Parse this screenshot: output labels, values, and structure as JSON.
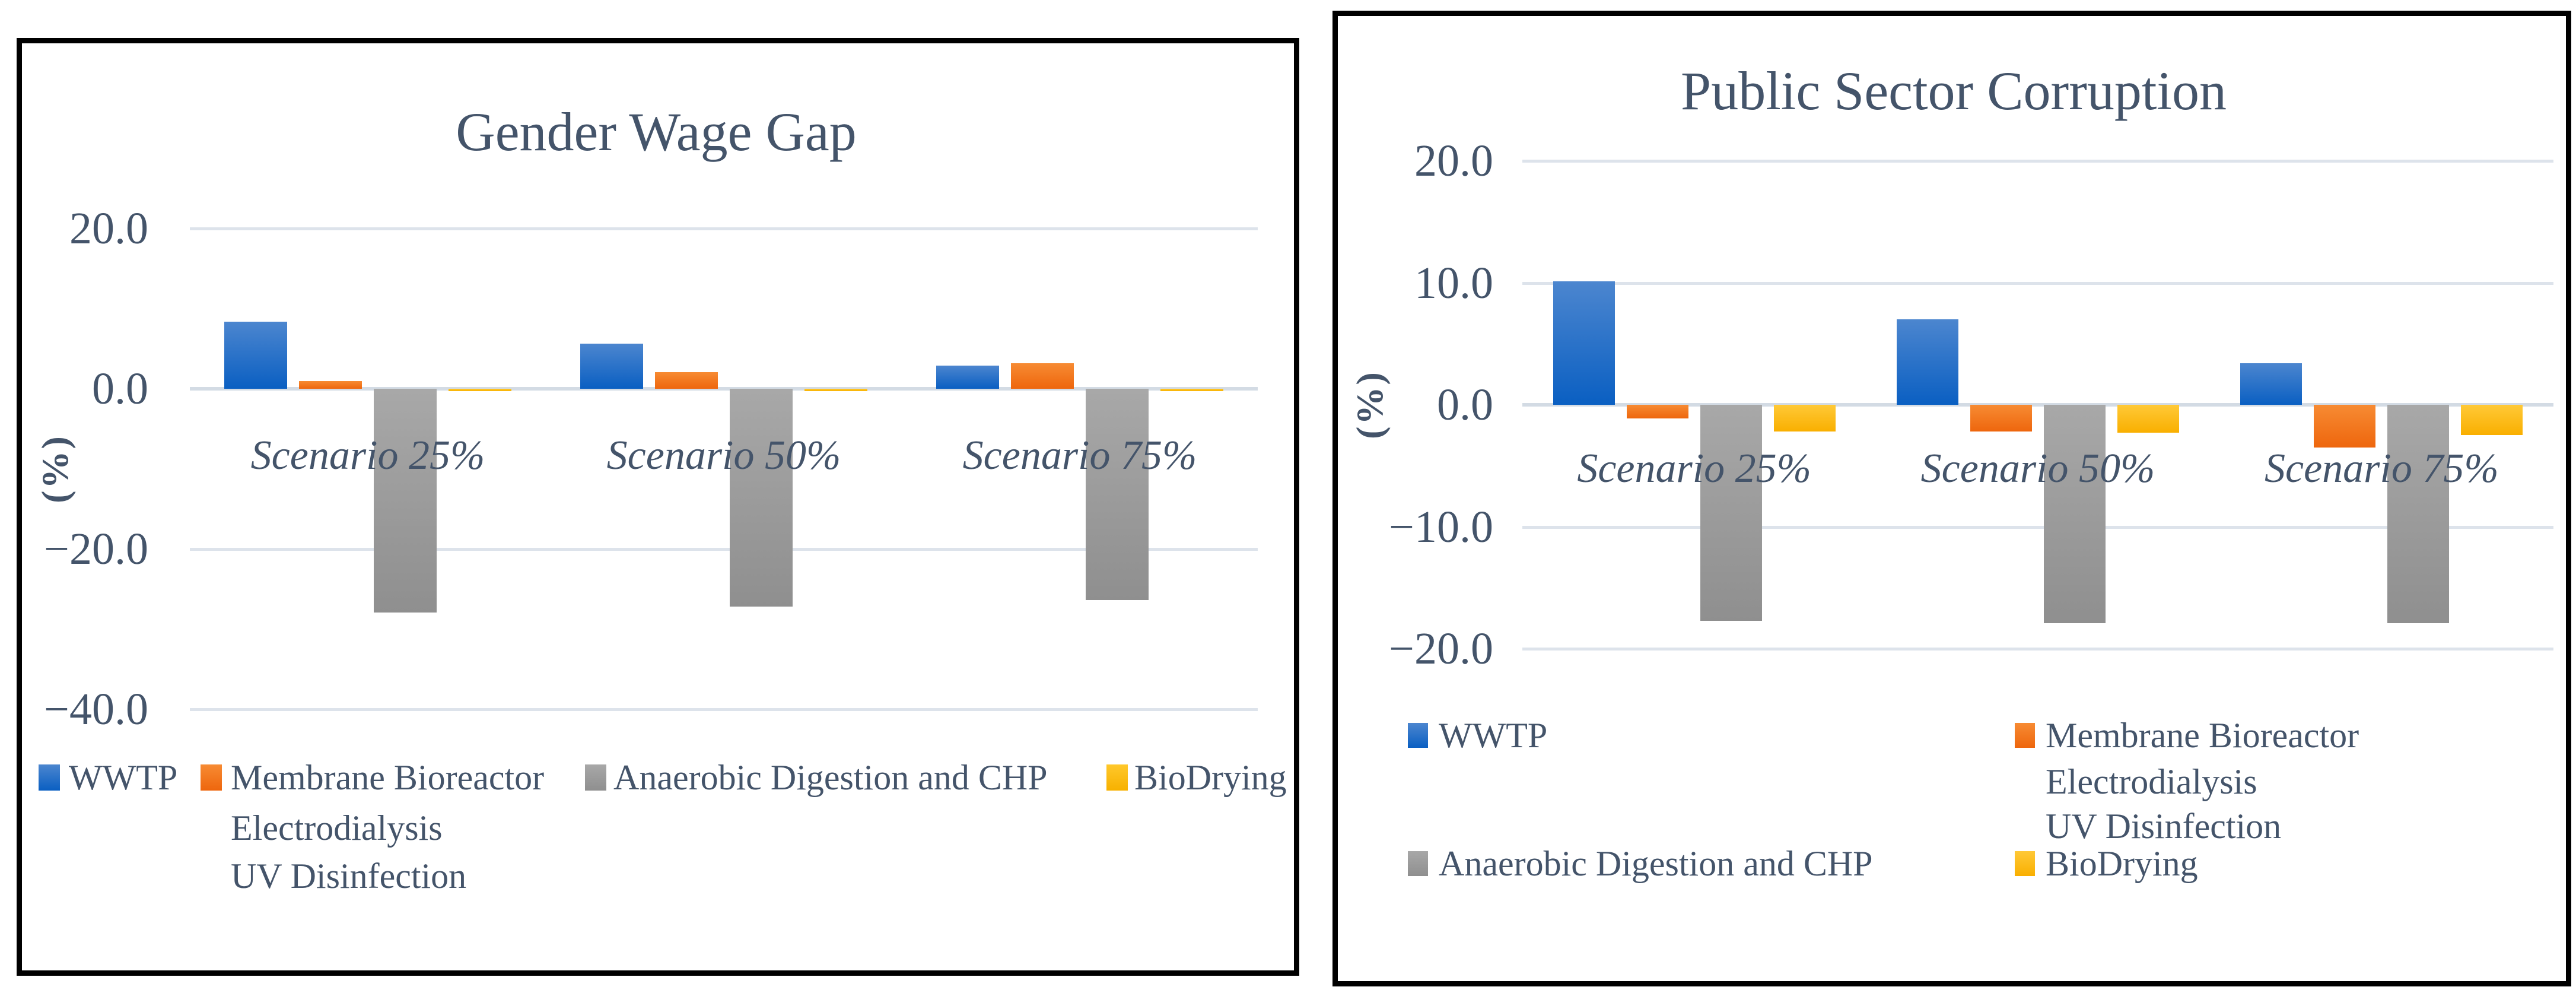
{
  "colors": {
    "text": "#44546A",
    "gridline": "#DDE3EB",
    "axis_line": "#D3DBE4",
    "panel_border": "#000000",
    "background": "#FFFFFF"
  },
  "chart_data": [
    {
      "type": "bar",
      "title": "Gender Wage Gap",
      "ylabel": "(%)",
      "xlabel": "",
      "categories": [
        "Scenario 25%",
        "Scenario 50%",
        "Scenario 75%"
      ],
      "ylim": [
        -40,
        20
      ],
      "grid": true,
      "legend_position": "bottom",
      "yticks": [
        {
          "v": 20,
          "label": "20.0"
        },
        {
          "v": 0,
          "label": "0.0"
        },
        {
          "v": -20,
          "label": "−20.0"
        },
        {
          "v": -40,
          "label": "−40.0"
        }
      ],
      "series": [
        {
          "name": "WWTP",
          "legend_lines": [
            "WWTP"
          ],
          "color_top": "#4C86CF",
          "color_bottom": "#0A5FC2",
          "values": [
            8.4,
            5.6,
            2.9
          ]
        },
        {
          "name": "Membrane Bioreactor Electrodialysis UV Disinfection",
          "legend_lines": [
            "Membrane Bioreactor",
            "Electrodialysis",
            "UV Disinfection"
          ],
          "color_top": "#F78B33",
          "color_bottom": "#EE660D",
          "values": [
            1.0,
            2.1,
            3.2
          ]
        },
        {
          "name": "Anaerobic Digestion and CHP",
          "legend_lines": [
            "Anaerobic Digestion and CHP"
          ],
          "color_top": "#A8A8A8",
          "color_bottom": "#8F8F8F",
          "values": [
            -27.9,
            -27.2,
            -26.4
          ]
        },
        {
          "name": "BioDrying",
          "legend_lines": [
            "BioDrying"
          ],
          "color_top": "#FFC82B",
          "color_bottom": "#F7B100",
          "values": [
            -0.3,
            -0.3,
            -0.3
          ]
        }
      ]
    },
    {
      "type": "bar",
      "title": "Public Sector Corruption",
      "ylabel": "(%)",
      "xlabel": "",
      "categories": [
        "Scenario 25%",
        "Scenario 50%",
        "Scenario 75%"
      ],
      "ylim": [
        -20,
        20
      ],
      "grid": true,
      "legend_position": "bottom",
      "yticks": [
        {
          "v": 20,
          "label": "20.0"
        },
        {
          "v": 10,
          "label": "10.0"
        },
        {
          "v": 0,
          "label": "0.0"
        },
        {
          "v": -10,
          "label": "−10.0"
        },
        {
          "v": -20,
          "label": "−20.0"
        }
      ],
      "series": [
        {
          "name": "WWTP",
          "legend_lines": [
            "WWTP"
          ],
          "color_top": "#4C86CF",
          "color_bottom": "#0A5FC2",
          "values": [
            10.1,
            7.0,
            3.4
          ]
        },
        {
          "name": "Membrane Bioreactor Electrodialysis UV Disinfection",
          "legend_lines": [
            "Membrane Bioreactor",
            "Electrodialysis",
            "UV Disinfection"
          ],
          "color_top": "#F78B33",
          "color_bottom": "#EE660D",
          "values": [
            -1.1,
            -2.2,
            -3.5
          ]
        },
        {
          "name": "Anaerobic Digestion and CHP",
          "legend_lines": [
            "Anaerobic Digestion and CHP"
          ],
          "color_top": "#A8A8A8",
          "color_bottom": "#8F8F8F",
          "values": [
            -17.7,
            -17.9,
            -17.9
          ]
        },
        {
          "name": "BioDrying",
          "legend_lines": [
            "BioDrying"
          ],
          "color_top": "#FFC937",
          "color_bottom": "#F9AF00",
          "values": [
            -2.2,
            -2.3,
            -2.5
          ]
        }
      ]
    }
  ]
}
